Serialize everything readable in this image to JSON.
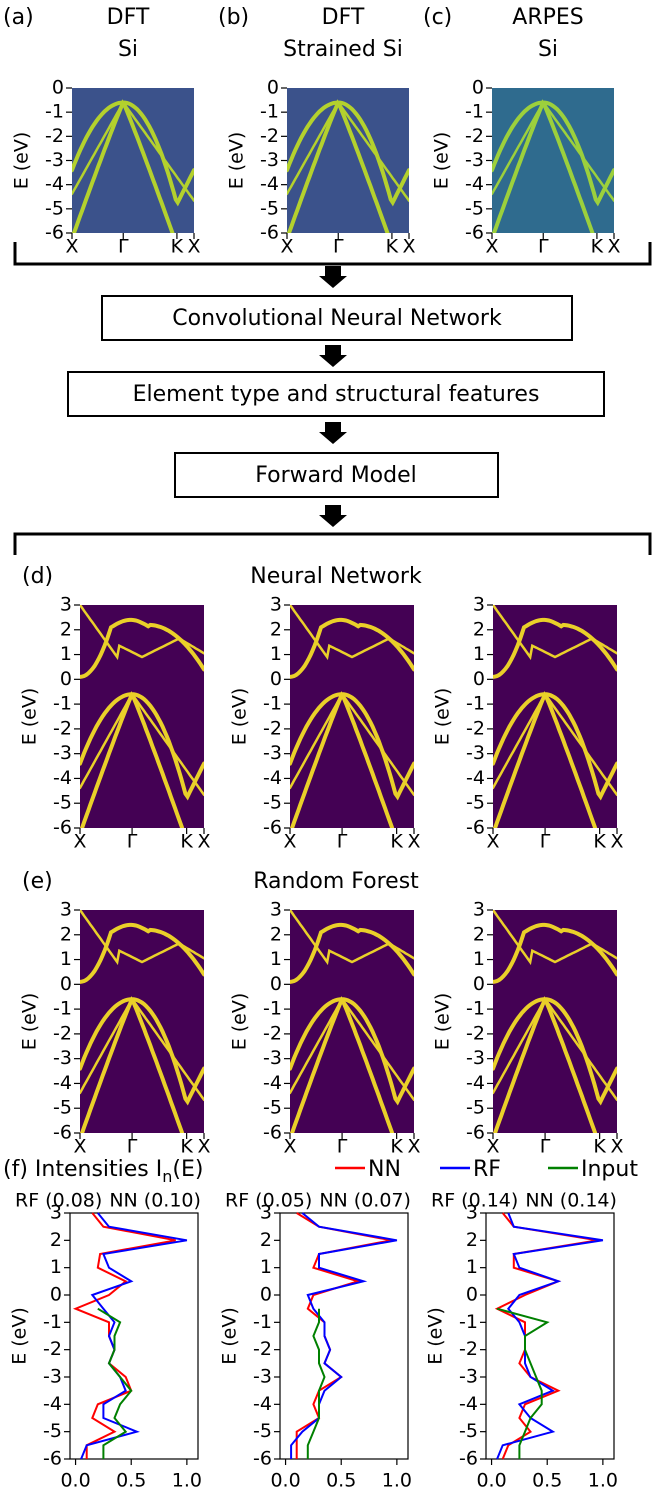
{
  "chart_data": [
    {
      "type": "heatmap",
      "label": "(a)",
      "title": [
        "DFT",
        "Si"
      ],
      "ylabel": "E (eV)",
      "categories": [
        "X",
        "Γ",
        "K",
        "X"
      ],
      "ylim": [
        -6,
        0
      ],
      "yticks": [
        0,
        -1,
        -2,
        -3,
        -4,
        -5,
        -6
      ],
      "background": "#3b528b",
      "band_color": "#c2df23"
    },
    {
      "type": "heatmap",
      "label": "(b)",
      "title": [
        "DFT",
        "Strained Si"
      ],
      "ylabel": "E (eV)",
      "categories": [
        "X",
        "Γ",
        "K",
        "X"
      ],
      "ylim": [
        -6,
        0
      ],
      "yticks": [
        0,
        -1,
        -2,
        -3,
        -4,
        -5,
        -6
      ],
      "background": "#3b528b",
      "band_color": "#c2df23"
    },
    {
      "type": "heatmap",
      "label": "(c)",
      "title": [
        "ARPES",
        "Si"
      ],
      "ylabel": "E (eV)",
      "categories": [
        "X",
        "Γ",
        "K",
        "X"
      ],
      "ylim": [
        -6,
        0
      ],
      "yticks": [
        0,
        -1,
        -2,
        -3,
        -4,
        -5,
        -6
      ],
      "background": "#2f6b8e",
      "band_color": "#a8db34"
    },
    {
      "type": "heatmap",
      "label": "(d)",
      "title": [
        "Neural Network"
      ],
      "ylabel": "E (eV)",
      "categories": [
        "X",
        "Γ",
        "K",
        "X"
      ],
      "ylim": [
        -6,
        3
      ],
      "yticks": [
        3,
        2,
        1,
        0,
        -1,
        -2,
        -3,
        -4,
        -5,
        -6
      ],
      "background": "#440154",
      "band_color": "#fde725"
    },
    {
      "type": "heatmap",
      "ylabel": "E (eV)",
      "categories": [
        "X",
        "Γ",
        "K",
        "X"
      ],
      "ylim": [
        -6,
        3
      ],
      "yticks": [
        3,
        2,
        1,
        0,
        -1,
        -2,
        -3,
        -4,
        -5,
        -6
      ],
      "background": "#440154",
      "band_color": "#fde725"
    },
    {
      "type": "heatmap",
      "ylabel": "E (eV)",
      "categories": [
        "X",
        "Γ",
        "K",
        "X"
      ],
      "ylim": [
        -6,
        3
      ],
      "yticks": [
        3,
        2,
        1,
        0,
        -1,
        -2,
        -3,
        -4,
        -5,
        -6
      ],
      "background": "#440154",
      "band_color": "#fde725"
    },
    {
      "type": "heatmap",
      "label": "(e)",
      "title": [
        "Random Forest"
      ],
      "ylabel": "E (eV)",
      "categories": [
        "X",
        "Γ",
        "K",
        "X"
      ],
      "ylim": [
        -6,
        3
      ],
      "yticks": [
        3,
        2,
        1,
        0,
        -1,
        -2,
        -3,
        -4,
        -5,
        -6
      ],
      "background": "#440154",
      "band_color": "#fde725"
    },
    {
      "type": "heatmap",
      "ylabel": "E (eV)",
      "categories": [
        "X",
        "Γ",
        "K",
        "X"
      ],
      "ylim": [
        -6,
        3
      ],
      "yticks": [
        3,
        2,
        1,
        0,
        -1,
        -2,
        -3,
        -4,
        -5,
        -6
      ],
      "background": "#440154",
      "band_color": "#fde725"
    },
    {
      "type": "heatmap",
      "ylabel": "E (eV)",
      "categories": [
        "X",
        "Γ",
        "K",
        "X"
      ],
      "ylim": [
        -6,
        3
      ],
      "yticks": [
        3,
        2,
        1,
        0,
        -1,
        -2,
        -3,
        -4,
        -5,
        -6
      ],
      "background": "#440154",
      "band_color": "#fde725"
    },
    {
      "type": "line",
      "annotations": [
        {
          "text": "RF (0.08)",
          "color": "#0000ff"
        },
        {
          "text": "NN (0.10)",
          "color": "#ff0000"
        }
      ],
      "ylabel": "E (eV)",
      "y": [
        3,
        2.5,
        2,
        1.5,
        1,
        0.5,
        0,
        -0.5,
        -1,
        -1.5,
        -2,
        -2.5,
        -3,
        -3.5,
        -4,
        -4.5,
        -5,
        -5.5,
        -6
      ],
      "series": [
        {
          "name": "NN",
          "color": "#ff0000",
          "values": [
            0.15,
            0.25,
            0.9,
            0.22,
            0.2,
            0.45,
            0.3,
            0.0,
            0.3,
            0.3,
            0.35,
            0.3,
            0.45,
            0.5,
            0.2,
            0.15,
            0.35,
            0.1,
            0.1
          ]
        },
        {
          "name": "RF",
          "color": "#0000ff",
          "values": [
            0.2,
            0.3,
            1.0,
            0.25,
            0.3,
            0.5,
            0.15,
            0.25,
            0.35,
            0.3,
            0.35,
            0.3,
            0.4,
            0.45,
            0.25,
            0.25,
            0.55,
            0.1,
            0.05
          ]
        },
        {
          "name": "Input",
          "color": "#008000",
          "values": [
            null,
            null,
            null,
            null,
            null,
            null,
            null,
            0.2,
            0.4,
            0.35,
            0.35,
            0.3,
            0.4,
            0.5,
            0.4,
            0.35,
            0.45,
            0.25,
            0.25
          ]
        }
      ],
      "xlim": [
        -0.05,
        1.1
      ],
      "xticks": [
        {
          "value": 0,
          "label": "0.0"
        },
        {
          "value": 0.5,
          "label": "0.5"
        },
        {
          "value": 1,
          "label": "1.0"
        }
      ],
      "ylim": [
        -6,
        3
      ],
      "yticks": [
        3,
        2,
        1,
        0,
        -1,
        -2,
        -3,
        -4,
        -5,
        -6
      ]
    },
    {
      "type": "line",
      "annotations": [
        {
          "text": "RF (0.05)",
          "color": "#0000ff"
        },
        {
          "text": "NN (0.07)",
          "color": "#ff0000"
        }
      ],
      "ylabel": "E (eV)",
      "y": [
        3,
        2.5,
        2,
        1.5,
        1,
        0.5,
        0,
        -0.5,
        -1,
        -1.5,
        -2,
        -2.5,
        -3,
        -3.5,
        -4,
        -4.5,
        -5,
        -5.5,
        -6
      ],
      "series": [
        {
          "color": "#ff0000",
          "values": [
            0.1,
            0.3,
            0.95,
            0.3,
            0.25,
            0.65,
            0.25,
            0.2,
            0.35,
            0.35,
            0.4,
            0.35,
            0.5,
            0.3,
            0.25,
            0.3,
            0.1,
            0.1,
            0.1
          ]
        },
        {
          "color": "#0000ff",
          "values": [
            0.15,
            0.3,
            1.0,
            0.3,
            0.3,
            0.7,
            0.2,
            0.25,
            0.35,
            0.35,
            0.4,
            0.35,
            0.5,
            0.35,
            0.3,
            0.3,
            0.15,
            0.05,
            0.05
          ]
        },
        {
          "color": "#008000",
          "values": [
            null,
            null,
            null,
            null,
            null,
            null,
            null,
            0.3,
            0.3,
            0.25,
            0.3,
            0.3,
            0.35,
            0.3,
            0.3,
            0.3,
            0.25,
            0.2,
            0.2
          ]
        }
      ],
      "xlim": [
        -0.05,
        1.1
      ],
      "xticks": [
        {
          "value": 0,
          "label": "0.0"
        },
        {
          "value": 0.5,
          "label": "0.5"
        },
        {
          "value": 1,
          "label": "1.0"
        }
      ],
      "ylim": [
        -6,
        3
      ],
      "yticks": [
        3,
        2,
        1,
        0,
        -1,
        -2,
        -3,
        -4,
        -5,
        -6
      ]
    },
    {
      "type": "line",
      "annotations": [
        {
          "text": "RF (0.14)",
          "color": "#0000ff"
        },
        {
          "text": "NN (0.14)",
          "color": "#ff0000"
        }
      ],
      "ylabel": "E (eV)",
      "y": [
        3,
        2.5,
        2,
        1.5,
        1,
        0.5,
        0,
        -0.5,
        -1,
        -1.5,
        -2,
        -2.5,
        -3,
        -3.5,
        -4,
        -4.5,
        -5,
        -5.5,
        -6
      ],
      "series": [
        {
          "color": "#ff0000",
          "values": [
            0.1,
            0.2,
            0.95,
            0.2,
            0.2,
            0.6,
            0.3,
            0.05,
            0.3,
            0.3,
            0.3,
            0.25,
            0.35,
            0.6,
            0.3,
            0.25,
            0.35,
            0.15,
            0.1
          ]
        },
        {
          "color": "#0000ff",
          "values": [
            0.15,
            0.2,
            1.0,
            0.2,
            0.25,
            0.6,
            0.25,
            0.15,
            0.25,
            0.3,
            0.3,
            0.3,
            0.35,
            0.55,
            0.25,
            0.35,
            0.55,
            0.1,
            0.05
          ]
        },
        {
          "color": "#008000",
          "values": [
            null,
            null,
            null,
            null,
            null,
            null,
            null,
            0.05,
            0.5,
            0.3,
            0.3,
            0.35,
            0.4,
            0.45,
            0.45,
            0.35,
            0.3,
            0.25,
            0.25
          ]
        }
      ],
      "xlim": [
        -0.05,
        1.1
      ],
      "xticks": [
        {
          "value": 0,
          "label": "0.0"
        },
        {
          "value": 0.5,
          "label": "0.5"
        },
        {
          "value": 1,
          "label": "1.0"
        }
      ],
      "ylim": [
        -6,
        3
      ],
      "yticks": [
        3,
        2,
        1,
        0,
        -1,
        -2,
        -3,
        -4,
        -5,
        -6
      ]
    }
  ],
  "flow": [
    "Convolutional Neural Network",
    "Element type and structural features",
    "Forward Model"
  ],
  "intensities_title": {
    "prefix": "(f) Intensities I",
    "subscript": "n",
    "suffix": "(E)"
  }
}
